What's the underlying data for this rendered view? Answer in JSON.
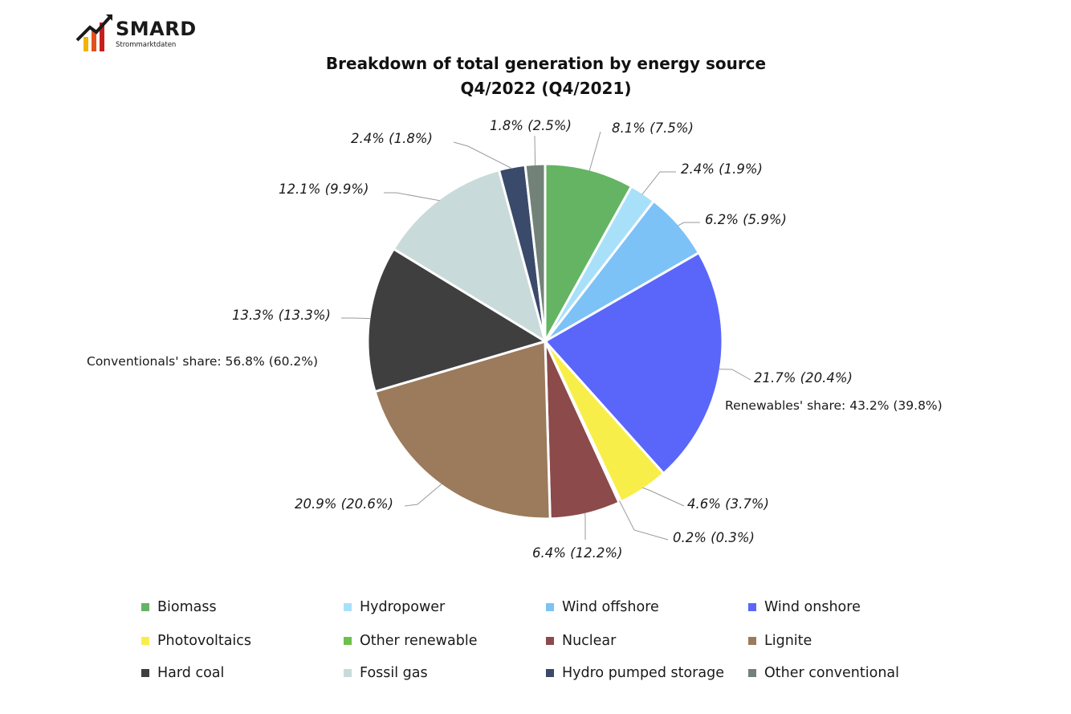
{
  "logo": {
    "name": "SMARD",
    "tagline": "Strommarktdaten"
  },
  "chart_data": {
    "type": "pie",
    "title_lines": [
      "Breakdown of total generation by energy source",
      "Q4/2022 (Q4/2021)"
    ],
    "slices": [
      {
        "name": "Biomass",
        "value": 8.1,
        "previous": 7.5,
        "label": "8.1% (7.5%)",
        "color": "#64b464"
      },
      {
        "name": "Hydropower",
        "value": 2.4,
        "previous": 1.9,
        "label": "2.4% (1.9%)",
        "color": "#a8e0fa"
      },
      {
        "name": "Wind offshore",
        "value": 6.2,
        "previous": 5.9,
        "label": "6.2% (5.9%)",
        "color": "#7cc2f7"
      },
      {
        "name": "Wind onshore",
        "value": 21.7,
        "previous": 20.4,
        "label": "21.7% (20.4%)",
        "color": "#5a66fa"
      },
      {
        "name": "Photovoltaics",
        "value": 4.6,
        "previous": 3.7,
        "label": "4.6% (3.7%)",
        "color": "#f8ee4a"
      },
      {
        "name": "Other renewable",
        "value": 0.2,
        "previous": 0.3,
        "label": "0.2% (0.3%)",
        "color": "#6cc04c"
      },
      {
        "name": "Nuclear",
        "value": 6.4,
        "previous": 12.2,
        "label": "6.4% (12.2%)",
        "color": "#8c4a4a"
      },
      {
        "name": "Lignite",
        "value": 20.9,
        "previous": 20.6,
        "label": "20.9% (20.6%)",
        "color": "#9b7b5c"
      },
      {
        "name": "Hard coal",
        "value": 13.3,
        "previous": 13.3,
        "label": "13.3% (13.3%)",
        "color": "#3f3f3f"
      },
      {
        "name": "Fossil gas",
        "value": 12.1,
        "previous": 9.9,
        "label": "12.1% (9.9%)",
        "color": "#c9dada"
      },
      {
        "name": "Hydro pumped storage",
        "value": 2.4,
        "previous": 1.8,
        "label": "2.4% (1.8%)",
        "color": "#3a4a6b"
      },
      {
        "name": "Other conventional",
        "value": 1.8,
        "previous": 2.5,
        "label": "1.8% (2.5%)",
        "color": "#728278"
      }
    ],
    "annotations": {
      "renewables": "Renewables' share: 43.2% (39.8%)",
      "conventionals": "Conventionals' share: 56.8% (60.2%)"
    },
    "legend_position": "bottom"
  },
  "legend": [
    "Biomass",
    "Hydropower",
    "Wind offshore",
    "Wind onshore",
    "Photovoltaics",
    "Other renewable",
    "Nuclear",
    "Lignite",
    "Hard coal",
    "Fossil gas",
    "Hydro pumped storage",
    "Other conventional"
  ]
}
